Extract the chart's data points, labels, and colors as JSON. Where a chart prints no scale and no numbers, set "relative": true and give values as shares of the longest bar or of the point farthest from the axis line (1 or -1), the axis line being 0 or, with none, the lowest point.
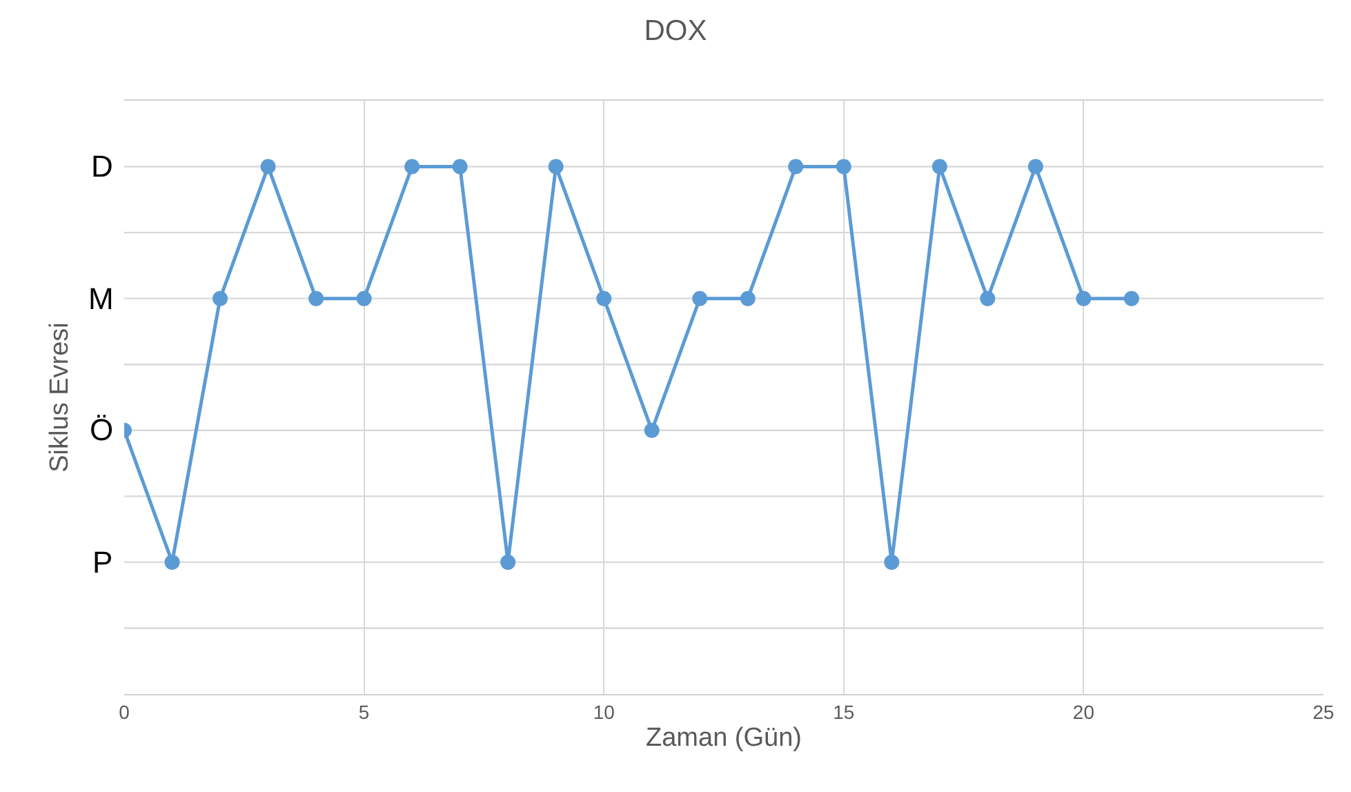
{
  "chart_data": {
    "type": "line",
    "title": "DOX",
    "xlabel": "Zaman (Gün)",
    "ylabel": "Siklus Evresi",
    "relative": true,
    "x": [
      0,
      1,
      2,
      3,
      4,
      5,
      6,
      7,
      8,
      9,
      10,
      11,
      12,
      13,
      14,
      15,
      16,
      17,
      18,
      19,
      20,
      21
    ],
    "series": [
      {
        "color": "#5b9bd5",
        "values": [
          0.5,
          0.25,
          0.75,
          1,
          0.75,
          0.75,
          1,
          1,
          0.25,
          1,
          0.75,
          0.5,
          0.75,
          0.75,
          1,
          1,
          0.25,
          1,
          0.75,
          1,
          0.75,
          0.75
        ]
      }
    ],
    "xlim": [
      0,
      25
    ],
    "xticks": [
      0,
      5,
      10,
      15,
      20,
      25
    ],
    "ref_lines": [
      {
        "axis": "y",
        "value": 0.125,
        "label": null,
        "color": "#d9d9d9"
      },
      {
        "axis": "y",
        "value": 0.25,
        "label": "P",
        "color": "#d9d9d9"
      },
      {
        "axis": "y",
        "value": 0.375,
        "label": null,
        "color": "#d9d9d9"
      },
      {
        "axis": "y",
        "value": 0.5,
        "label": "Ö",
        "color": "#d9d9d9"
      },
      {
        "axis": "y",
        "value": 0.625,
        "label": null,
        "color": "#d9d9d9"
      },
      {
        "axis": "y",
        "value": 0.75,
        "label": "M",
        "color": "#d9d9d9"
      },
      {
        "axis": "y",
        "value": 0.875,
        "label": null,
        "color": "#d9d9d9"
      },
      {
        "axis": "y",
        "value": 1,
        "label": "D",
        "color": "#d9d9d9"
      }
    ],
    "grid": "x",
    "marker": "circle",
    "line_style": "solid"
  }
}
